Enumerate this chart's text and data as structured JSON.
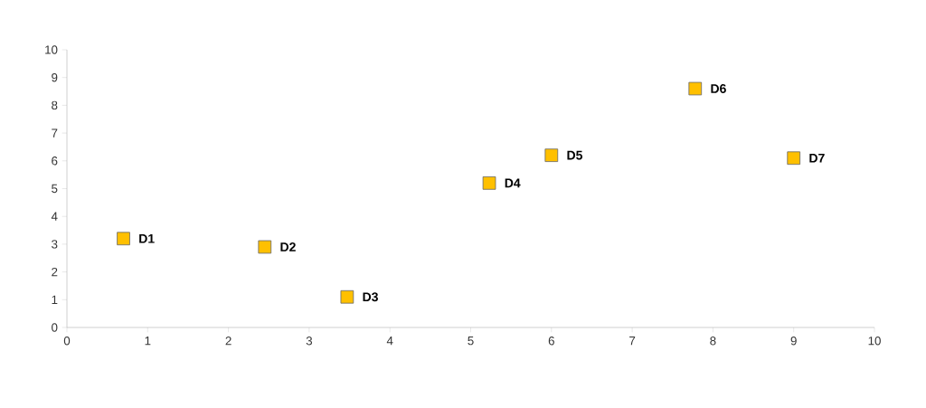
{
  "chart_data": {
    "type": "scatter",
    "x": [
      0.7,
      2.45,
      3.47,
      5.23,
      6.0,
      7.78,
      9.0
    ],
    "values": [
      3.2,
      2.9,
      1.1,
      5.2,
      6.2,
      8.6,
      6.1
    ],
    "color": "#ffc000",
    "marker": "square",
    "xlim": [
      0,
      10
    ],
    "ylim": [
      0,
      10
    ],
    "xticks": [
      0,
      1,
      2,
      3,
      4,
      5,
      6,
      7,
      8,
      9,
      10
    ],
    "yticks": [
      0,
      1,
      2,
      3,
      4,
      5,
      6,
      7,
      8,
      9,
      10
    ],
    "grid": false,
    "annotations": [
      {
        "text": "D1",
        "x": 0.7,
        "y": 3.2
      },
      {
        "text": "D2",
        "x": 2.45,
        "y": 2.9
      },
      {
        "text": "D3",
        "x": 3.47,
        "y": 1.1
      },
      {
        "text": "D4",
        "x": 5.23,
        "y": 5.2
      },
      {
        "text": "D5",
        "x": 6.0,
        "y": 6.2
      },
      {
        "text": "D6",
        "x": 7.78,
        "y": 8.6
      },
      {
        "text": "D7",
        "x": 9.0,
        "y": 6.1
      }
    ]
  }
}
